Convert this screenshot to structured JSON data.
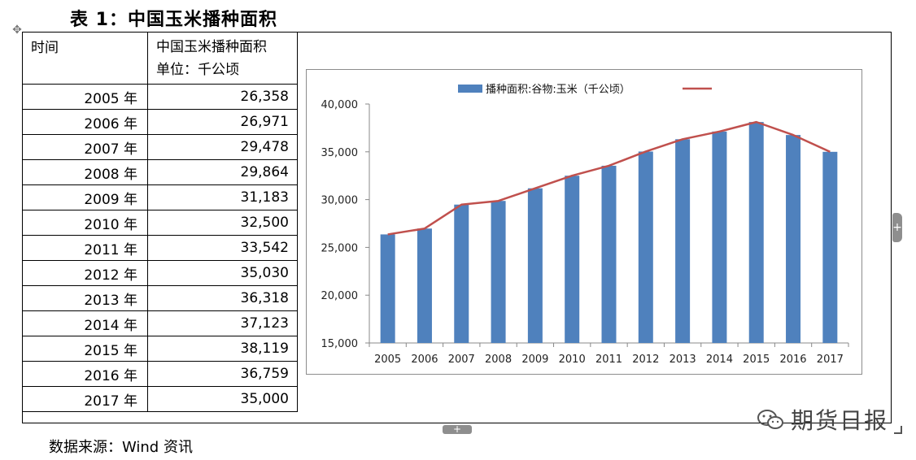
{
  "caption": "表 1：中国玉米播种面积",
  "table": {
    "header": {
      "col1": "时间",
      "col2_line1": "中国玉米播种面积",
      "col2_line2": "单位：千公顷"
    },
    "rows": [
      {
        "year": "2005 年",
        "value": "26,358"
      },
      {
        "year": "2006 年",
        "value": "26,971"
      },
      {
        "year": "2007 年",
        "value": "29,478"
      },
      {
        "year": "2008 年",
        "value": "29,864"
      },
      {
        "year": "2009 年",
        "value": "31,183"
      },
      {
        "year": "2010 年",
        "value": "32,500"
      },
      {
        "year": "2011 年",
        "value": "33,542"
      },
      {
        "year": "2012 年",
        "value": "35,030"
      },
      {
        "year": "2013 年",
        "value": "36,318"
      },
      {
        "year": "2014 年",
        "value": "37,123"
      },
      {
        "year": "2015 年",
        "value": "38,119"
      },
      {
        "year": "2016 年",
        "value": "36,759"
      },
      {
        "year": "2017 年",
        "value": "35,000"
      }
    ]
  },
  "chart_data": {
    "type": "bar",
    "categories": [
      "2005",
      "2006",
      "2007",
      "2008",
      "2009",
      "2010",
      "2011",
      "2012",
      "2013",
      "2014",
      "2015",
      "2016",
      "2017"
    ],
    "series": [
      {
        "name": "播种面积:谷物:玉米（千公顷）",
        "kind": "bar",
        "color": "#4f81bd",
        "values": [
          26358,
          26971,
          29478,
          29864,
          31183,
          32500,
          33542,
          35030,
          36318,
          37123,
          38119,
          36759,
          35000
        ]
      },
      {
        "name": "",
        "kind": "line",
        "color": "#c0504d",
        "values": [
          26358,
          26971,
          29478,
          29864,
          31183,
          32500,
          33542,
          35030,
          36318,
          37123,
          38119,
          36759,
          35000
        ]
      }
    ],
    "ylim": [
      15000,
      40000
    ],
    "yticks": [
      15000,
      20000,
      25000,
      30000,
      35000,
      40000
    ],
    "ytick_labels": [
      "15,000",
      "20,000",
      "25,000",
      "30,000",
      "35,000",
      "40,000"
    ],
    "grid": false,
    "legend_position": "top-center"
  },
  "watermark": {
    "icon": "wechat-icon",
    "text": "期货日报"
  },
  "source": "数据来源：Wind 资讯",
  "controls": {
    "expand_glyph": "+",
    "move_glyph": "✥"
  }
}
